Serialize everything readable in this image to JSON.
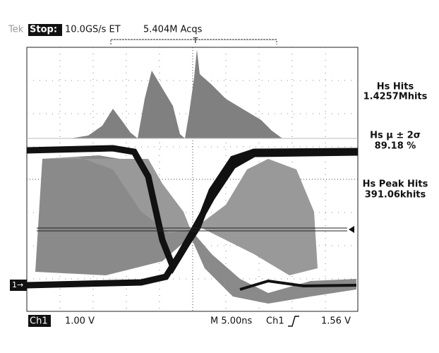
{
  "header": {
    "brand": "Tek",
    "state": "Stop:",
    "sample_rate": "10.0GS/s ET",
    "acquisitions": "5.404M Acqs",
    "trigger_marker": "T"
  },
  "measurements": [
    {
      "label": "Hs Hits",
      "value": "1.4257Mhits"
    },
    {
      "label": "Hs μ ± 2σ",
      "value": "89.18 %"
    },
    {
      "label": "Hs Peak Hits",
      "value": "391.06khits"
    }
  ],
  "channel_marker": "1→",
  "footer": {
    "channel": "Ch1",
    "scale": "1.00 V",
    "timebase": "M 5.00ns",
    "trigger_source": "Ch1",
    "trigger_level": "1.56 V"
  }
}
